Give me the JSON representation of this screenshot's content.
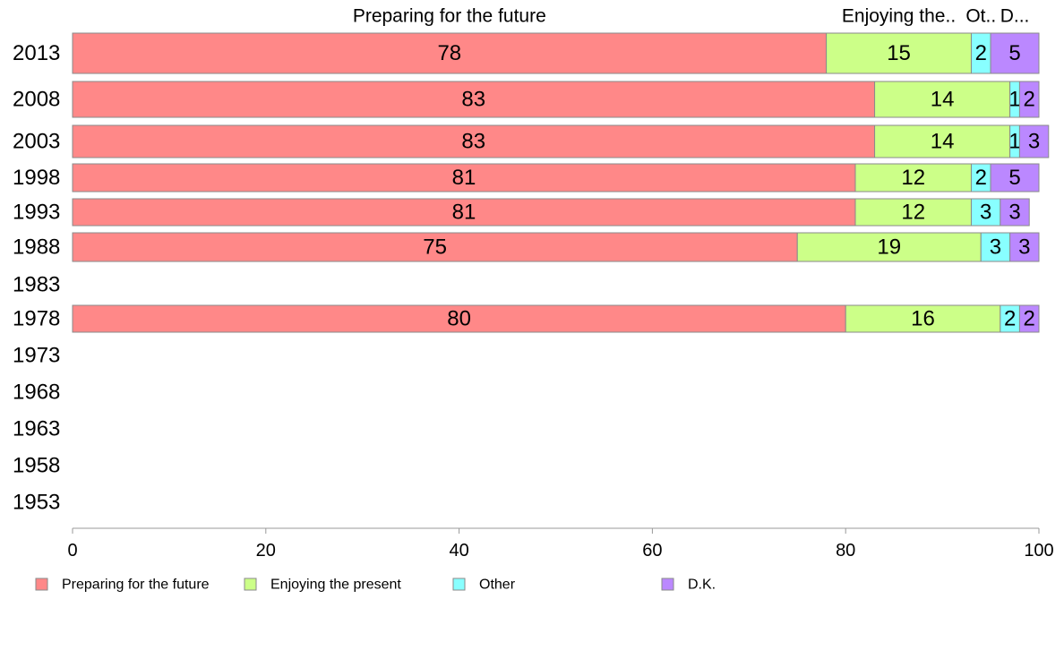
{
  "chart_data": {
    "type": "bar",
    "orientation": "horizontal",
    "stacked": true,
    "categories": [
      "2013",
      "2008",
      "2003",
      "1998",
      "1993",
      "1988",
      "1983",
      "1978",
      "1973",
      "1968",
      "1963",
      "1958",
      "1953"
    ],
    "series": [
      {
        "name": "Preparing for the future",
        "color": "#ff8888",
        "values": [
          78,
          83,
          83,
          81,
          81,
          75,
          null,
          80,
          null,
          null,
          null,
          null,
          null
        ]
      },
      {
        "name": "Enjoying the present",
        "color": "#ccff88",
        "values": [
          15,
          14,
          14,
          12,
          12,
          19,
          null,
          16,
          null,
          null,
          null,
          null,
          null
        ]
      },
      {
        "name": "Other",
        "color": "#88ffff",
        "values": [
          2,
          1,
          1,
          2,
          3,
          3,
          null,
          2,
          null,
          null,
          null,
          null,
          null
        ]
      },
      {
        "name": "D.K.",
        "color": "#bb88ff",
        "values": [
          5,
          2,
          3,
          5,
          3,
          3,
          null,
          2,
          null,
          null,
          null,
          null,
          null
        ]
      }
    ],
    "column_headers": [
      "Preparing for the future",
      "Enjoying the..",
      "Ot..",
      "D..."
    ],
    "xlim": [
      0,
      100
    ],
    "xticks": [
      0,
      20,
      40,
      60,
      80,
      100
    ],
    "grid": false,
    "legend_position": "bottom"
  }
}
